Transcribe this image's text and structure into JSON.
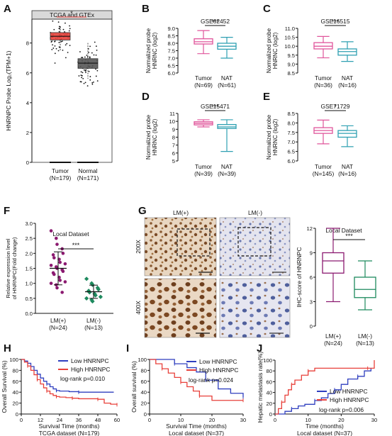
{
  "panel_labels": [
    "A",
    "B",
    "C",
    "D",
    "E",
    "F",
    "G",
    "H",
    "I",
    "J"
  ],
  "colors": {
    "red": "#e8403a",
    "gray": "#555555",
    "pink": "#e0559b",
    "teal": "#2fa0b2",
    "purple": "#8b1a70",
    "green": "#1e8a5e",
    "blue": "#2f3fbf"
  },
  "chart_data": [
    {
      "id": "A",
      "type": "box",
      "title": "TCGA and GTEx",
      "ylabel": "HNRNPC Probe Log₂(TPM+1)",
      "yticks": [
        0,
        2,
        4,
        6,
        8
      ],
      "ylim": [
        0,
        9.6
      ],
      "categories": [
        "Tumor",
        "Normal"
      ],
      "n_labels": [
        "(N=179)",
        "(N=171)"
      ],
      "boxes": [
        {
          "group": "Tumor",
          "q1": 8.2,
          "median": 8.45,
          "q3": 8.7,
          "whisker_low": 7.5,
          "whisker_high": 9.1,
          "outliers_min": 5.8,
          "color": "#e8403a"
        },
        {
          "group": "Normal",
          "q1": 6.3,
          "median": 6.65,
          "q3": 6.95,
          "whisker_low": 5.6,
          "whisker_high": 8.0,
          "color": "#555555"
        }
      ],
      "significance": "*"
    },
    {
      "id": "B",
      "type": "box",
      "title": "GSE62452",
      "ylabel": "Normalized probe HNRNC (log2)",
      "yticks": [
        6.0,
        6.5,
        7.0,
        7.5,
        8.0,
        8.5,
        9.0
      ],
      "ylim": [
        6.0,
        9.0
      ],
      "categories": [
        "Tumor",
        "NAT"
      ],
      "n_labels": [
        "(N=69)",
        "(N=61)"
      ],
      "boxes": [
        {
          "group": "Tumor",
          "whisker_low": 7.3,
          "q1": 7.95,
          "median": 8.1,
          "q3": 8.3,
          "whisker_high": 8.85
        },
        {
          "group": "NAT",
          "whisker_low": 7.0,
          "q1": 7.6,
          "median": 7.8,
          "q3": 8.0,
          "whisker_high": 8.4
        }
      ],
      "significance": "***"
    },
    {
      "id": "C",
      "type": "box",
      "title": "GSE16515",
      "ylabel": "Normalized probe HNRNC (log2)",
      "yticks": [
        8.5,
        9.0,
        9.5,
        10.0,
        10.5,
        11.0
      ],
      "ylim": [
        8.5,
        11.0
      ],
      "categories": [
        "Tumor",
        "NAT"
      ],
      "n_labels": [
        "(N=36)",
        "(N=16)"
      ],
      "boxes": [
        {
          "group": "Tumor",
          "whisker_low": 9.35,
          "q1": 9.85,
          "median": 10.0,
          "q3": 10.2,
          "whisker_high": 10.55
        },
        {
          "group": "NAT",
          "whisker_low": 9.15,
          "q1": 9.5,
          "median": 9.7,
          "q3": 9.85,
          "whisker_high": 10.25
        }
      ],
      "significance": "***"
    },
    {
      "id": "D",
      "type": "box",
      "title": "GSE15471",
      "ylabel": "Normalized probe HNRNC (log2)",
      "yticks": [
        5,
        6,
        7,
        8,
        9,
        10,
        11
      ],
      "ylim": [
        5,
        11
      ],
      "categories": [
        "Tumor",
        "NAT"
      ],
      "n_labels": [
        "(N=39)",
        "(N=39)"
      ],
      "boxes": [
        {
          "group": "Tumor",
          "whisker_low": 9.3,
          "q1": 9.55,
          "median": 9.75,
          "q3": 9.95,
          "whisker_high": 10.2
        },
        {
          "group": "NAT",
          "whisker_low": 6.2,
          "q1": 9.1,
          "median": 9.3,
          "q3": 9.6,
          "whisker_high": 10.2
        }
      ],
      "significance": "***"
    },
    {
      "id": "E",
      "type": "box",
      "title": "GSE71729",
      "ylabel": "Normalized probe HNRNC (log2)",
      "yticks": [
        6.0,
        6.5,
        7.0,
        7.5,
        8.0,
        8.5
      ],
      "ylim": [
        6.0,
        8.5
      ],
      "categories": [
        "Tumor",
        "NAT"
      ],
      "n_labels": [
        "(N=145)",
        "(N=16)"
      ],
      "boxes": [
        {
          "group": "Tumor",
          "whisker_low": 6.9,
          "q1": 7.45,
          "median": 7.6,
          "q3": 7.75,
          "whisker_high": 8.15
        },
        {
          "group": "NAT",
          "whisker_low": 6.75,
          "q1": 7.25,
          "median": 7.45,
          "q3": 7.6,
          "whisker_high": 7.85
        }
      ],
      "significance": "*"
    },
    {
      "id": "F",
      "type": "scatter",
      "title": "Local Dataset",
      "ylabel": "Relative expression level of HNRNPC(Fold change)",
      "yticks": [
        0.0,
        0.5,
        1.0,
        1.5,
        2.0,
        2.5,
        3.0
      ],
      "ylim": [
        0,
        3.0
      ],
      "categories": [
        "LM(+)",
        "LM(-)"
      ],
      "n_labels": [
        "(N=24)",
        "(N=13)"
      ],
      "groups": [
        {
          "group": "LM(+)",
          "mean": 1.5,
          "sd": 0.55,
          "color": "#8b1a70",
          "points": [
            2.75,
            2.5,
            2.3,
            2.15,
            2.0,
            1.95,
            1.85,
            1.8,
            1.7,
            1.65,
            1.6,
            1.55,
            1.5,
            1.45,
            1.4,
            1.35,
            1.3,
            1.2,
            1.1,
            1.05,
            1.0,
            0.95,
            0.85,
            0.7
          ]
        },
        {
          "group": "LM(-)",
          "mean": 0.72,
          "sd": 0.22,
          "color": "#1e8a5e",
          "points": [
            1.15,
            1.0,
            0.95,
            0.85,
            0.8,
            0.75,
            0.7,
            0.65,
            0.6,
            0.55,
            0.5,
            0.45,
            0.4
          ]
        }
      ],
      "significance": "***"
    },
    {
      "id": "G",
      "type": "box",
      "title": "Local Dataset",
      "ylabel": "IHC-score of HNRNPC",
      "yticks": [
        0,
        3,
        6,
        9,
        12
      ],
      "ylim": [
        0,
        12
      ],
      "categories": [
        "LM(+)",
        "LM(-)"
      ],
      "n_labels": [
        "(N=24)",
        "(N=13)"
      ],
      "boxes": [
        {
          "group": "LM(+)",
          "whisker_low": 3,
          "q1": 6.5,
          "median": 8,
          "q3": 9,
          "whisker_high": 12,
          "color": "#8b1a70"
        },
        {
          "group": "LM(-)",
          "whisker_low": 2,
          "q1": 3.5,
          "median": 4.5,
          "q3": 6,
          "whisker_high": 8,
          "color": "#1e8a5e"
        }
      ],
      "significance": "***",
      "image_labels": {
        "col1": "LM(+)",
        "col2": "LM(-)",
        "row1": "200X",
        "row2": "400X"
      }
    },
    {
      "id": "H",
      "type": "line",
      "subtype": "kaplan-meier",
      "ylabel": "Overall Survival (%)",
      "xlabel": "Survival Time (months)",
      "caption": "TCGA dataset (N=179)",
      "xticks": [
        0,
        12,
        24,
        36,
        48,
        60
      ],
      "xlim": [
        0,
        60
      ],
      "yticks": [
        0,
        20,
        40,
        60,
        80,
        100
      ],
      "ylim": [
        0,
        100
      ],
      "legend": [
        "Low HNRNPC",
        "High HNRNPC"
      ],
      "annotation": "log-rank p=0.010",
      "series": [
        {
          "name": "Low HNRNPC",
          "color": "#2f3fbf",
          "x": [
            0,
            2,
            4,
            6,
            8,
            10,
            12,
            14,
            16,
            18,
            20,
            22,
            24,
            30,
            36,
            48,
            58
          ],
          "y": [
            100,
            97,
            93,
            87,
            80,
            73,
            66,
            60,
            55,
            50,
            46,
            43,
            42,
            41,
            40,
            40,
            40
          ]
        },
        {
          "name": "High HNRNPC",
          "color": "#e8403a",
          "x": [
            0,
            2,
            4,
            6,
            8,
            10,
            12,
            14,
            16,
            18,
            20,
            22,
            24,
            28,
            32,
            36,
            42,
            48,
            52,
            56,
            60
          ],
          "y": [
            100,
            95,
            88,
            80,
            72,
            63,
            55,
            48,
            42,
            37,
            34,
            32,
            31,
            30,
            29,
            28,
            28,
            27,
            20,
            18,
            17
          ]
        }
      ]
    },
    {
      "id": "I",
      "type": "line",
      "subtype": "kaplan-meier",
      "ylabel": "Overall survival (%)",
      "xlabel": "Survival Time (months)",
      "caption": "Local dataset (N=37)",
      "xticks": [
        0,
        10,
        20,
        30
      ],
      "xlim": [
        0,
        30
      ],
      "yticks": [
        0,
        20,
        40,
        60,
        80,
        100
      ],
      "ylim": [
        0,
        100
      ],
      "legend": [
        "Low HNRNPC",
        "High HNRNPC"
      ],
      "annotation": "log-rank p=0.024",
      "series": [
        {
          "name": "Low HNRNPC",
          "color": "#2f3fbf",
          "x": [
            0,
            4,
            8,
            12,
            15,
            18,
            22,
            26,
            30
          ],
          "y": [
            100,
            100,
            92,
            85,
            77,
            62,
            46,
            38,
            31
          ]
        },
        {
          "name": "High HNRNPC",
          "color": "#e8403a",
          "x": [
            0,
            2,
            4,
            6,
            8,
            10,
            12,
            14,
            16,
            20,
            24,
            30
          ],
          "y": [
            100,
            92,
            83,
            75,
            67,
            58,
            50,
            42,
            33,
            25,
            25,
            25
          ]
        }
      ]
    },
    {
      "id": "J",
      "type": "line",
      "subtype": "cumulative-incidence",
      "ylabel": "Hepatic metastasis rate(%)",
      "xlabel": "Time (months)",
      "caption": "Local dataset (N=37)",
      "xticks": [
        0,
        10,
        20,
        30
      ],
      "xlim": [
        0,
        30
      ],
      "yticks": [
        0,
        20,
        40,
        60,
        80,
        100
      ],
      "ylim": [
        0,
        100
      ],
      "legend": [
        "Low HNRNPC",
        "High HNRNPC"
      ],
      "annotation": "log-rank p=0.006",
      "series": [
        {
          "name": "Low HNRNPC",
          "color": "#2f3fbf",
          "x": [
            0,
            3,
            5,
            7,
            9,
            12,
            14,
            16,
            18,
            20,
            22,
            25,
            27,
            29
          ],
          "y": [
            0,
            5,
            10,
            15,
            18,
            25,
            30,
            38,
            45,
            55,
            65,
            70,
            80,
            85
          ]
        },
        {
          "name": "High HNRNPC",
          "color": "#e8403a",
          "x": [
            0,
            1,
            2,
            3,
            4,
            5,
            6,
            8,
            10,
            12,
            20,
            28,
            30
          ],
          "y": [
            0,
            10,
            22,
            35,
            45,
            55,
            63,
            72,
            80,
            85,
            85,
            85,
            100
          ]
        }
      ]
    }
  ]
}
